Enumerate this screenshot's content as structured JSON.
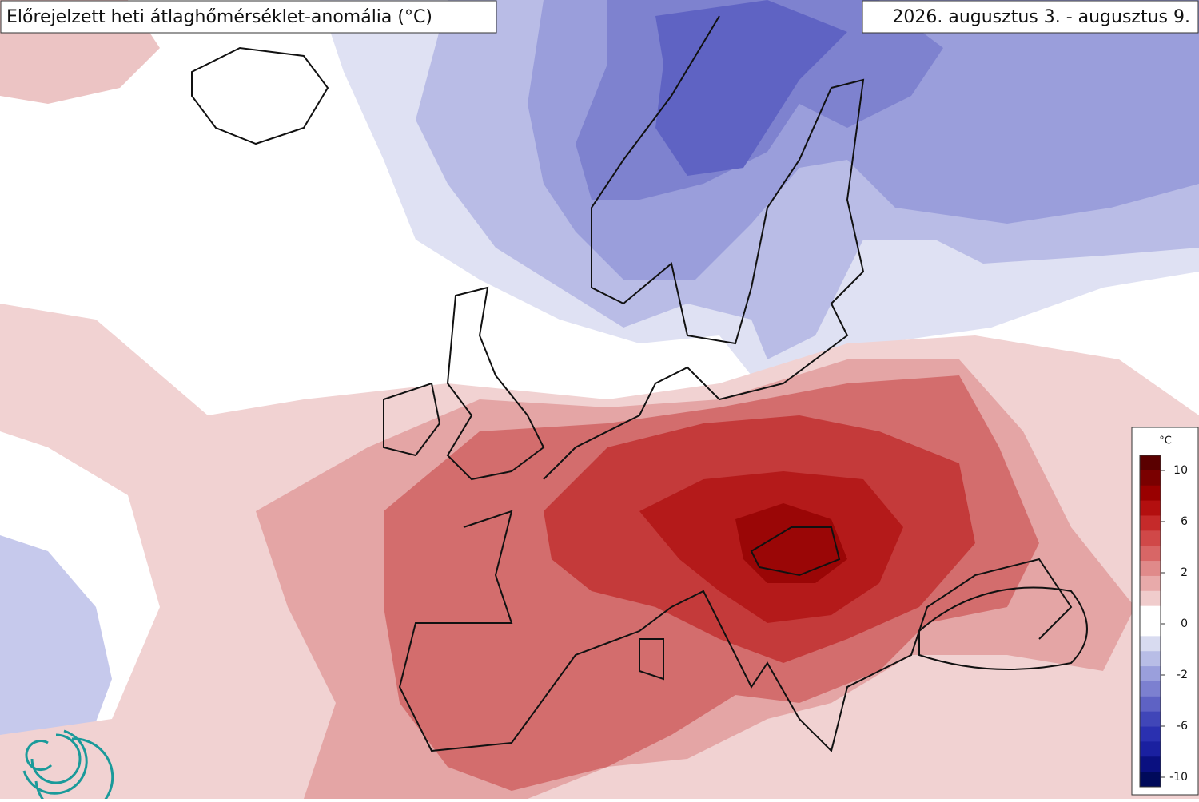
{
  "title": "Előrejelzett heti átlaghőmérséklet-anomália (°C)",
  "date_range": "2026. augusztus 3. - augusztus 9.",
  "colorbar": {
    "unit": "°C",
    "ticks": [
      10,
      6,
      2,
      0,
      -2,
      -6,
      -10
    ],
    "colors": [
      "#5a0000",
      "#7a0000",
      "#990000",
      "#b30f0f",
      "#c52a2a",
      "#d04848",
      "#d86666",
      "#e08a8a",
      "#e8aaaa",
      "#f0cccc",
      "#ffffff",
      "#ffffff",
      "#d8dbf0",
      "#b8bde6",
      "#9a9fdc",
      "#7c80d0",
      "#5e62c4",
      "#4046b8",
      "#2a30b0",
      "#1a20a0",
      "#0a1080",
      "#000a5a"
    ]
  }
}
